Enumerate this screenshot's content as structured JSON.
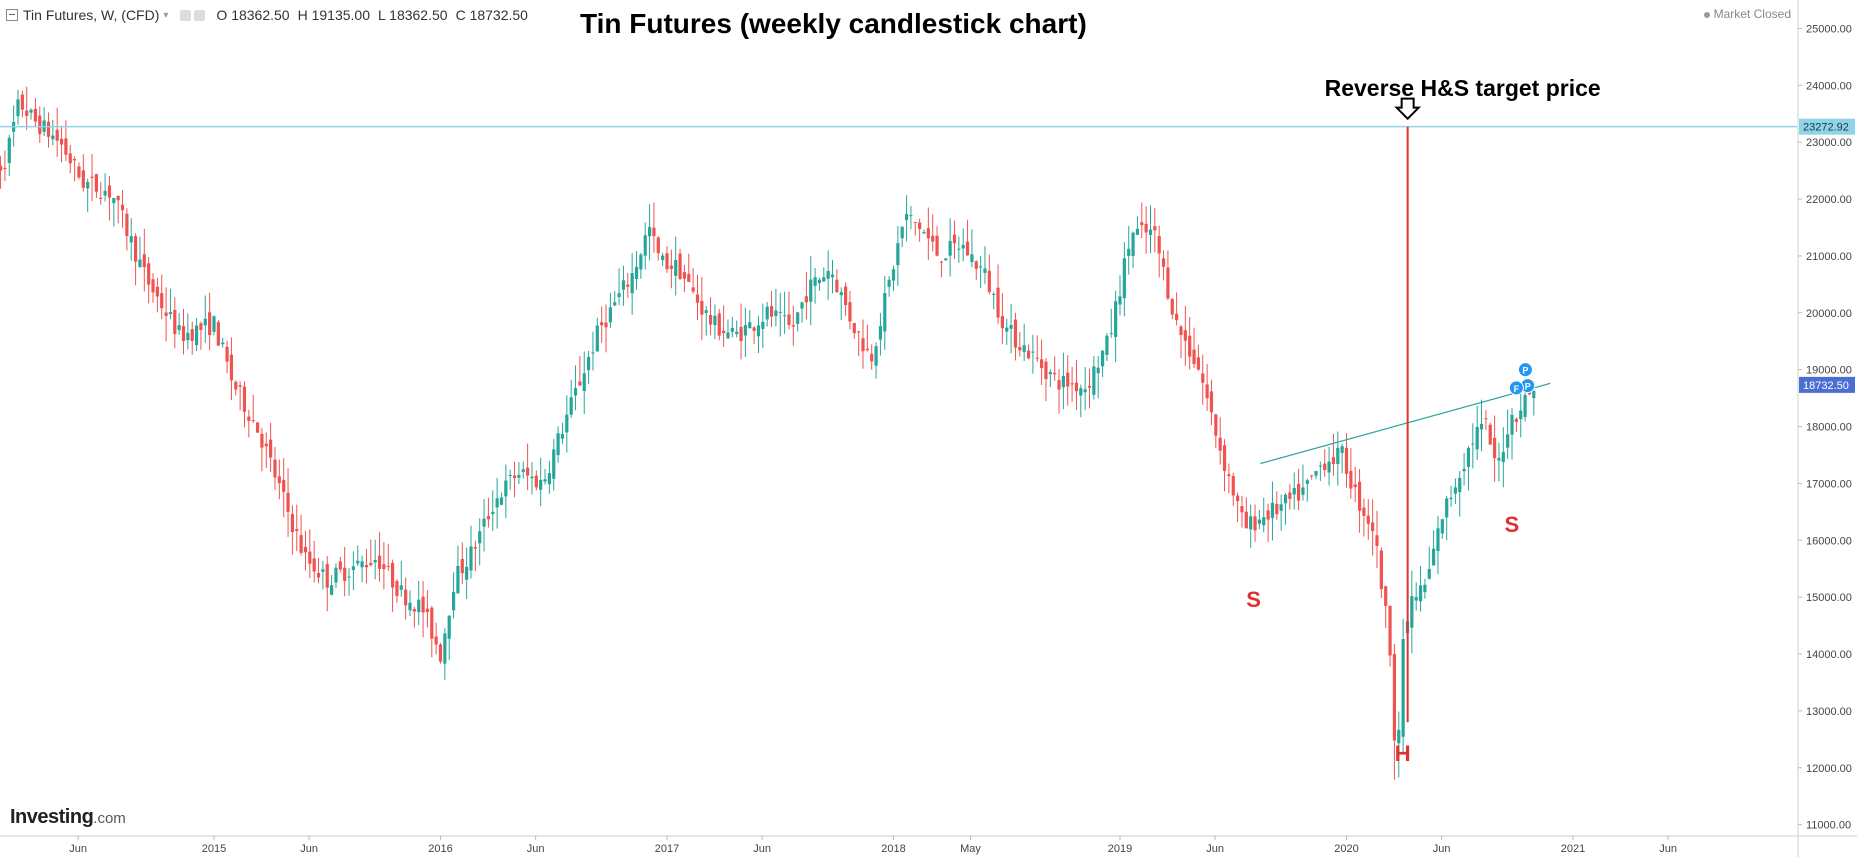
{
  "header": {
    "symbol": "Tin Futures, W, (CFD)",
    "open": "O 18362.50",
    "high": "H 19135.00",
    "low": "L 18362.50",
    "close": "C 18732.50"
  },
  "status": "Market Closed",
  "logo": {
    "main": "Investing",
    "suffix": ".com"
  },
  "colors": {
    "up": "#26a69a",
    "down": "#ef5350",
    "target_line": "#8fd3e8",
    "neckline": "#26a69a",
    "annotation": "#e03030",
    "price_tag": "#4a6fd1"
  },
  "chart_data": {
    "type": "candlestick",
    "title": "Tin Futures (weekly candlestick chart)",
    "ylim": [
      10800,
      25500
    ],
    "y_ticks": [
      "11000.00",
      "12000.00",
      "13000.00",
      "14000.00",
      "15000.00",
      "16000.00",
      "17000.00",
      "18000.00",
      "19000.00",
      "20000.00",
      "21000.00",
      "22000.00",
      "23000.00",
      "24000.00",
      "25000.00"
    ],
    "x_ticks": [
      {
        "label": "Jun",
        "t": 0.4
      },
      {
        "label": "2015",
        "t": 1.0
      },
      {
        "label": "Jun",
        "t": 1.42
      },
      {
        "label": "2016",
        "t": 2.0
      },
      {
        "label": "Jun",
        "t": 2.42
      },
      {
        "label": "2017",
        "t": 3.0
      },
      {
        "label": "Jun",
        "t": 3.42
      },
      {
        "label": "2018",
        "t": 4.0
      },
      {
        "label": "May",
        "t": 4.34
      },
      {
        "label": "2019",
        "t": 5.0
      },
      {
        "label": "Jun",
        "t": 5.42
      },
      {
        "label": "2020",
        "t": 6.0
      },
      {
        "label": "Jun",
        "t": 6.42
      },
      {
        "label": "2021",
        "t": 7.0
      },
      {
        "label": "Jun",
        "t": 7.42
      }
    ],
    "price_path": [
      [
        0.0,
        22300
      ],
      [
        0.08,
        22700
      ],
      [
        0.14,
        23700
      ],
      [
        0.2,
        23400
      ],
      [
        0.32,
        23000
      ],
      [
        0.42,
        22300
      ],
      [
        0.55,
        22100
      ],
      [
        0.7,
        20600
      ],
      [
        0.85,
        19600
      ],
      [
        1.0,
        19800
      ],
      [
        1.08,
        18800
      ],
      [
        1.2,
        17900
      ],
      [
        1.3,
        16800
      ],
      [
        1.4,
        15700
      ],
      [
        1.5,
        15300
      ],
      [
        1.6,
        15500
      ],
      [
        1.72,
        15700
      ],
      [
        1.82,
        15100
      ],
      [
        1.92,
        14800
      ],
      [
        2.0,
        14000
      ],
      [
        2.06,
        15300
      ],
      [
        2.14,
        15800
      ],
      [
        2.24,
        16700
      ],
      [
        2.34,
        17200
      ],
      [
        2.45,
        17000
      ],
      [
        2.55,
        18100
      ],
      [
        2.7,
        19700
      ],
      [
        2.85,
        20700
      ],
      [
        2.92,
        21500
      ],
      [
        2.97,
        20900
      ],
      [
        3.05,
        20800
      ],
      [
        3.12,
        20300
      ],
      [
        3.2,
        19800
      ],
      [
        3.3,
        19600
      ],
      [
        3.45,
        20000
      ],
      [
        3.55,
        19700
      ],
      [
        3.62,
        20400
      ],
      [
        3.72,
        20800
      ],
      [
        3.82,
        19800
      ],
      [
        3.9,
        19200
      ],
      [
        3.98,
        20500
      ],
      [
        4.05,
        21700
      ],
      [
        4.12,
        21500
      ],
      [
        4.2,
        21000
      ],
      [
        4.3,
        21200
      ],
      [
        4.4,
        20700
      ],
      [
        4.5,
        19700
      ],
      [
        4.6,
        19300
      ],
      [
        4.72,
        18800
      ],
      [
        4.85,
        18700
      ],
      [
        4.95,
        19500
      ],
      [
        5.05,
        21400
      ],
      [
        5.15,
        21400
      ],
      [
        5.25,
        19800
      ],
      [
        5.35,
        19000
      ],
      [
        5.45,
        17500
      ],
      [
        5.55,
        16200
      ],
      [
        5.62,
        16400
      ],
      [
        5.72,
        16600
      ],
      [
        5.82,
        16900
      ],
      [
        5.9,
        17400
      ],
      [
        5.98,
        17500
      ],
      [
        6.05,
        16700
      ],
      [
        6.12,
        16200
      ],
      [
        6.18,
        14500
      ],
      [
        6.22,
        13300
      ],
      [
        6.28,
        14900
      ],
      [
        6.35,
        15200
      ],
      [
        6.42,
        16400
      ],
      [
        6.5,
        17200
      ],
      [
        6.57,
        17900
      ],
      [
        6.62,
        18000
      ],
      [
        6.66,
        17200
      ],
      [
        6.72,
        18100
      ],
      [
        6.78,
        18400
      ],
      [
        6.83,
        18732.5
      ]
    ],
    "target_line": {
      "value": 23272.92,
      "label": "23272.92"
    },
    "last_price": {
      "value": 18732.5,
      "label": "18732.50"
    },
    "neckline": {
      "from": [
        5.62,
        17350
      ],
      "to": [
        6.9,
        18760
      ]
    },
    "head_line": {
      "t": 6.27,
      "from": 12800,
      "to": 23272.92
    },
    "annotations": {
      "target_text": "Reverse H&S target price",
      "left_shoulder": "S",
      "head": "H",
      "right_shoulder": "S"
    },
    "markers": [
      "P",
      "P",
      "F"
    ]
  }
}
